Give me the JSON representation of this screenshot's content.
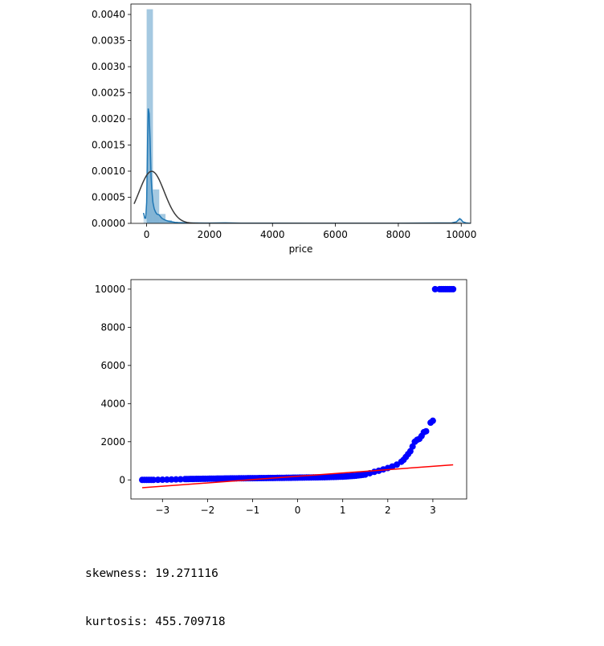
{
  "chart_data": [
    {
      "type": "histogram",
      "xlabel": "price",
      "ylabel": "",
      "xlim": [
        -500,
        10300
      ],
      "ylim": [
        0,
        0.0042
      ],
      "x_ticks": [
        0,
        2000,
        4000,
        6000,
        8000,
        10000
      ],
      "y_ticks": [
        "0.0000",
        "0.0005",
        "0.0010",
        "0.0015",
        "0.0020",
        "0.0025",
        "0.0030",
        "0.0035",
        "0.0040"
      ],
      "bin_width": 200,
      "bins": [
        {
          "x0": 0,
          "x1": 200,
          "density": 0.0041
        },
        {
          "x0": 200,
          "x1": 400,
          "density": 0.00065
        },
        {
          "x0": 400,
          "x1": 600,
          "density": 0.00018
        },
        {
          "x0": 600,
          "x1": 800,
          "density": 6e-05
        },
        {
          "x0": 800,
          "x1": 1000,
          "density": 2e-05
        }
      ],
      "kde": {
        "x": [
          -100,
          -60,
          -30,
          0,
          30,
          50,
          80,
          110,
          140,
          170,
          200,
          240,
          280,
          320,
          360,
          400,
          450,
          500,
          600,
          700,
          800,
          900,
          1000,
          1200,
          1500,
          2000,
          2500,
          3000,
          4000,
          6000,
          8000,
          9700,
          9850,
          9950,
          10000,
          10050,
          10150,
          10300
        ],
        "y": [
          0.0002,
          0.0001,
          0.0001,
          0.0004,
          0.0016,
          0.0022,
          0.0021,
          0.0016,
          0.0009,
          0.0006,
          0.0004,
          0.00028,
          0.00022,
          0.00018,
          0.00017,
          0.00016,
          0.00012,
          9e-05,
          6e-05,
          4e-05,
          3e-05,
          2e-05,
          1.5e-05,
          1e-05,
          8e-06,
          5e-06,
          1e-05,
          4e-06,
          3e-06,
          2e-06,
          2e-06,
          1e-05,
          3e-05,
          9e-05,
          7e-05,
          3e-05,
          1e-05,
          0.0
        ]
      },
      "normal_fit": {
        "mu": 160,
        "sigma": 400
      }
    },
    {
      "type": "scatter",
      "xlim": [
        -3.7,
        3.75
      ],
      "ylim": [
        -1000,
        10500
      ],
      "x_ticks": [
        -3,
        -2,
        -1,
        0,
        1,
        2,
        3
      ],
      "y_ticks": [
        0,
        2000,
        4000,
        6000,
        8000,
        10000
      ],
      "series": [
        {
          "x": [
            -3.45,
            -3.2,
            -3.1,
            -3.0,
            -2.9,
            -2.8,
            -2.7,
            -2.6,
            -2.5,
            -2.3,
            -2.0,
            -1.7,
            -1.4,
            -1.0,
            -0.6,
            -0.2,
            0.2,
            0.6,
            1.0,
            1.3,
            1.5,
            1.6,
            1.7,
            1.8,
            1.9,
            2.0,
            2.1,
            2.2,
            2.3,
            2.35,
            2.4,
            2.45,
            2.5,
            2.55,
            2.6,
            2.65,
            2.7,
            2.75,
            2.8,
            2.85,
            2.95,
            3.0,
            3.05,
            3.15,
            3.45
          ],
          "y": [
            0,
            0,
            5,
            10,
            15,
            20,
            25,
            30,
            40,
            50,
            60,
            70,
            80,
            90,
            100,
            110,
            125,
            140,
            170,
            220,
            280,
            350,
            420,
            480,
            550,
            620,
            700,
            800,
            950,
            1050,
            1200,
            1350,
            1500,
            1750,
            2000,
            2100,
            2150,
            2300,
            2500,
            2550,
            3000,
            3100,
            10000,
            10000,
            10000
          ]
        }
      ],
      "fit_line": {
        "x": [
          -3.45,
          3.45
        ],
        "y": [
          -410,
          790
        ]
      }
    }
  ],
  "stats_text": {
    "skewness": "skewness: 19.271116",
    "kurtosis": "kurtosis: 455.709718"
  }
}
